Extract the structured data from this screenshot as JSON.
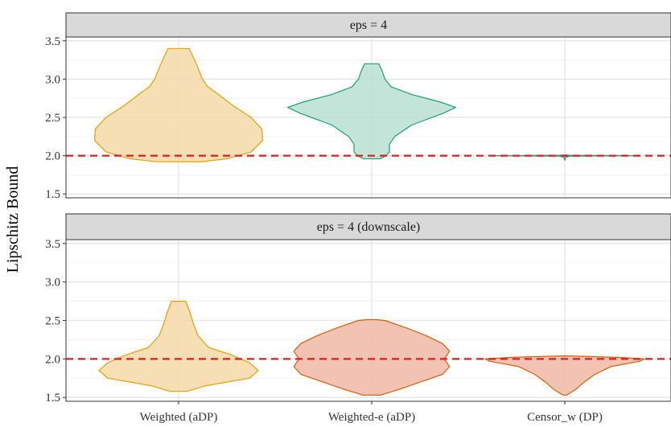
{
  "chart_data": {
    "type": "violin",
    "ylabel": "Lipschitz Bound",
    "xlabel": "",
    "categories": [
      "Weighted (aDP)",
      "Weighted-e (aDP)",
      "Censor_w (DP)"
    ],
    "ylim": [
      1.45,
      3.55
    ],
    "yticks": [
      1.5,
      2.0,
      2.5,
      3.0,
      3.5
    ],
    "ytick_labels": [
      "1.5",
      "2.0",
      "2.5",
      "3.0",
      "3.5"
    ],
    "reference_line": {
      "y": 2.0,
      "style": "dashed",
      "color": "#e41a1c"
    },
    "grid": true,
    "panels": [
      {
        "title": "eps = 4",
        "violins": [
          {
            "category": "Weighted (aDP)",
            "fill": "#f5d9a8",
            "stroke": "#e69f00",
            "profile": [
              [
                1.92,
                0.25
              ],
              [
                1.96,
                0.55
              ],
              [
                2.05,
                0.82
              ],
              [
                2.2,
                0.95
              ],
              [
                2.35,
                0.94
              ],
              [
                2.5,
                0.82
              ],
              [
                2.65,
                0.62
              ],
              [
                2.8,
                0.45
              ],
              [
                2.9,
                0.33
              ],
              [
                3.0,
                0.27
              ],
              [
                3.2,
                0.2
              ],
              [
                3.4,
                0.12
              ]
            ]
          },
          {
            "category": "Weighted-e (aDP)",
            "fill": "#b8e0d2",
            "stroke": "#1b9e77",
            "profile": [
              [
                1.96,
                0.1
              ],
              [
                2.0,
                0.16
              ],
              [
                2.05,
                0.2
              ],
              [
                2.15,
                0.2
              ],
              [
                2.25,
                0.26
              ],
              [
                2.4,
                0.45
              ],
              [
                2.55,
                0.8
              ],
              [
                2.63,
                0.95
              ],
              [
                2.7,
                0.78
              ],
              [
                2.8,
                0.45
              ],
              [
                2.9,
                0.22
              ],
              [
                3.0,
                0.15
              ],
              [
                3.1,
                0.12
              ],
              [
                3.2,
                0.08
              ]
            ]
          },
          {
            "category": "Censor_w (DP)",
            "fill": "#b8e0d2",
            "stroke": "#1b9e77",
            "profile": [
              [
                1.94,
                0.0
              ],
              [
                1.98,
                0.01
              ],
              [
                1.995,
                0.06
              ],
              [
                2.0,
                0.85
              ],
              [
                2.005,
                0.06
              ],
              [
                2.01,
                0.0
              ]
            ]
          }
        ]
      },
      {
        "title": "eps = 4 (downscale)",
        "violins": [
          {
            "category": "Weighted (aDP)",
            "fill": "#f5d9a8",
            "stroke": "#e69f00",
            "profile": [
              [
                1.58,
                0.1
              ],
              [
                1.65,
                0.3
              ],
              [
                1.75,
                0.8
              ],
              [
                1.85,
                0.9
              ],
              [
                1.95,
                0.8
              ],
              [
                2.05,
                0.6
              ],
              [
                2.15,
                0.34
              ],
              [
                2.3,
                0.22
              ],
              [
                2.45,
                0.17
              ],
              [
                2.6,
                0.13
              ],
              [
                2.75,
                0.08
              ]
            ]
          },
          {
            "category": "Weighted-e (aDP)",
            "fill": "#f0b8a4",
            "stroke": "#d95f02",
            "profile": [
              [
                1.53,
                0.1
              ],
              [
                1.6,
                0.3
              ],
              [
                1.7,
                0.55
              ],
              [
                1.8,
                0.8
              ],
              [
                1.9,
                0.88
              ],
              [
                2.0,
                0.82
              ],
              [
                2.1,
                0.88
              ],
              [
                2.2,
                0.8
              ],
              [
                2.3,
                0.62
              ],
              [
                2.4,
                0.4
              ],
              [
                2.5,
                0.15
              ],
              [
                2.51,
                0.05
              ]
            ]
          },
          {
            "category": "Censor_w (DP)",
            "fill": "#f0b8a4",
            "stroke": "#d95f02",
            "profile": [
              [
                1.53,
                0.02
              ],
              [
                1.6,
                0.12
              ],
              [
                1.7,
                0.22
              ],
              [
                1.8,
                0.34
              ],
              [
                1.9,
                0.52
              ],
              [
                1.97,
                0.85
              ],
              [
                2.0,
                0.9
              ],
              [
                2.02,
                0.6
              ],
              [
                2.04,
                0.0
              ]
            ]
          }
        ]
      }
    ]
  }
}
